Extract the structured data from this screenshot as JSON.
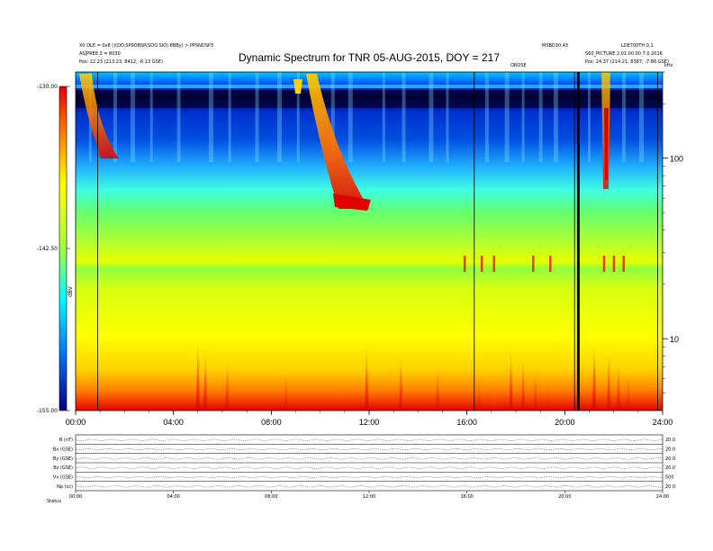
{
  "chart_data": {
    "type": "heatmap",
    "title": "Dynamic Spectrum for TNR 05-AUG-2015, DOY = 217",
    "header_left": [
      "X0 DLE = 0x8 ()(DO.SP9OBSP(SOO.SIO) 8BBy) > PPSNDSP3",
      "ASJPRE8 3 = 8030",
      "Pos: 22.23 (213.23, 8412, -6.13 GSE)"
    ],
    "header_right": [
      "MSBD30.43",
      "LDE700TH 0.1",
      "S60_PICTURE 2.01.00.00 7.0.2016",
      "Pos: 24.37 (214.21, 8387, -7.86 GSE)"
    ],
    "orbit_label": "OROSE",
    "right_corner_label": "kHz",
    "colorbar": {
      "label": "dBV",
      "min": -155.0,
      "mid": -142.5,
      "max": -130.0,
      "tick_labels": [
        "-130.00",
        "-142.50",
        "-155.00"
      ]
    },
    "x": {
      "label": "UT",
      "range_hours": [
        0,
        24
      ],
      "tick_labels": [
        "00:00",
        "04:00",
        "08:00",
        "12:00",
        "16:00",
        "20:00",
        "24:00"
      ],
      "tick_hours": [
        0,
        4,
        8,
        12,
        16,
        20,
        24
      ]
    },
    "y": {
      "label": "kHz",
      "scale": "log",
      "range_khz": [
        4,
        300
      ],
      "tick_labels": [
        "100",
        "10"
      ],
      "tick_values": [
        100,
        10
      ]
    },
    "vertical_markers_hours": [
      0.9,
      16.3,
      20.4,
      23.8
    ],
    "gap_hours": [
      20.5,
      20.6
    ],
    "features": [
      {
        "name": "type-III-burst-1",
        "t_hours": [
          0.2,
          1.6
        ],
        "f_khz": [
          300,
          100
        ]
      },
      {
        "name": "type-II-burst",
        "t_hours": [
          9.7,
          11.8
        ],
        "f_khz": [
          300,
          50
        ]
      },
      {
        "name": "type-III-burst-2",
        "t_hours": [
          21.6,
          22.0
        ],
        "f_khz": [
          300,
          60
        ]
      }
    ],
    "panels": {
      "rows": [
        "B (nT)",
        "Bx (GSE)",
        "By (GSE)",
        "Bz (GSE)",
        "Vx (GSE)",
        "Np (cc)"
      ],
      "right_values": [
        "20.0",
        "20.0",
        "20.0",
        "20.0",
        "500",
        "20.0"
      ],
      "bottom_tick_labels": [
        "00:00",
        "04:00",
        "08:00",
        "12:00",
        "16:00",
        "20:00",
        "24:00"
      ],
      "corner_label": "Status"
    }
  }
}
